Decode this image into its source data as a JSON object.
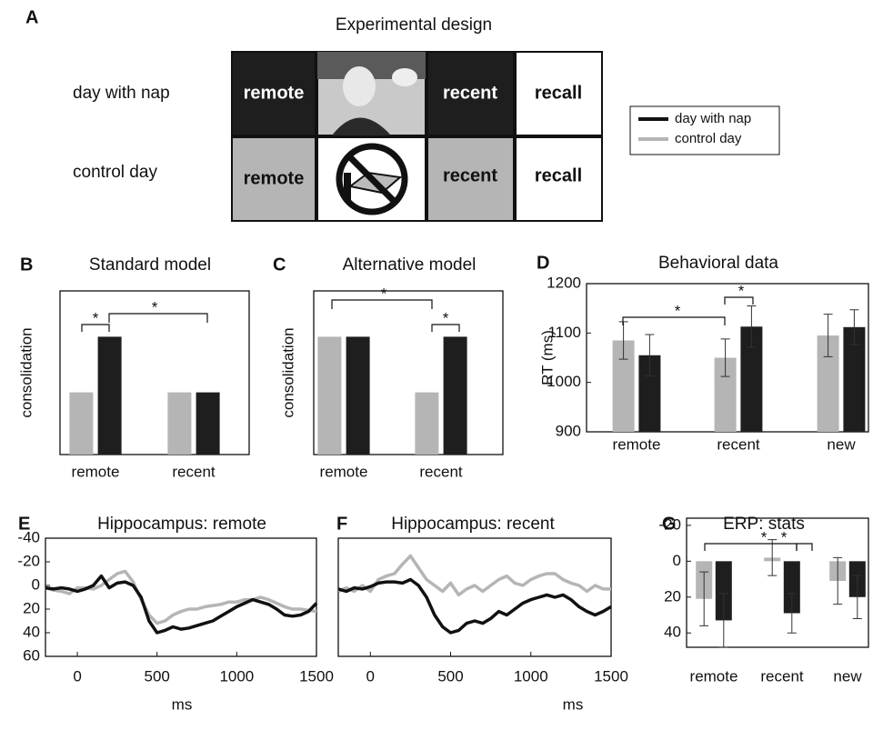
{
  "design": {
    "label": "A",
    "title": "Experimental design",
    "rows": [
      {
        "name": "day with nap",
        "cells": [
          "remote",
          "recent",
          "recall"
        ]
      },
      {
        "name": "control day",
        "cells": [
          "remote",
          "recent",
          "recall"
        ]
      }
    ],
    "legend": [
      {
        "name": "day with nap",
        "color": "#111111"
      },
      {
        "name": "control day",
        "color": "#b5b5b5"
      }
    ]
  },
  "chart_data": [
    {
      "type": "bar",
      "label": "B",
      "title": "Standard model",
      "ylabel": "consolidation",
      "categories": [
        "remote",
        "recent"
      ],
      "ylim": [
        0,
        1
      ],
      "series": [
        {
          "color": "#b5b5b5",
          "values": [
            0.38,
            0.38
          ]
        },
        {
          "color": "#1e1e1e",
          "values": [
            0.72,
            0.38
          ]
        }
      ],
      "annotations": [
        "*",
        "*"
      ]
    },
    {
      "type": "bar",
      "label": "C",
      "title": "Alternative model",
      "ylabel": "consolidation",
      "categories": [
        "remote",
        "recent"
      ],
      "ylim": [
        0,
        1
      ],
      "series": [
        {
          "color": "#b5b5b5",
          "values": [
            0.72,
            0.38
          ]
        },
        {
          "color": "#1e1e1e",
          "values": [
            0.72,
            0.72
          ]
        }
      ],
      "annotations": [
        "*",
        "*"
      ]
    },
    {
      "type": "bar",
      "label": "D",
      "title": "Behavioral data",
      "ylabel": "RT (ms)",
      "categories": [
        "remote",
        "recent",
        "new"
      ],
      "ylim": [
        900,
        1200
      ],
      "yticks": [
        900,
        1000,
        1100,
        1200
      ],
      "series": [
        {
          "color": "#b5b5b5",
          "values": [
            1085,
            1050,
            1095
          ],
          "errors": [
            38,
            38,
            43
          ]
        },
        {
          "color": "#1e1e1e",
          "values": [
            1055,
            1113,
            1112
          ],
          "errors": [
            42,
            42,
            35
          ]
        }
      ],
      "annotations": [
        "*",
        "*"
      ]
    },
    {
      "type": "line",
      "label": "E",
      "title": "Hippocampus: remote",
      "xlabel": "ms",
      "y_inverted": true,
      "xlim": [
        -200,
        1500
      ],
      "xticks": [
        0,
        500,
        1000,
        1500
      ],
      "ylim": [
        -40,
        60
      ],
      "yticks": [
        -40,
        -20,
        0,
        20,
        40,
        60
      ],
      "x": [
        -200,
        -150,
        -100,
        -50,
        0,
        50,
        100,
        150,
        200,
        250,
        300,
        350,
        400,
        450,
        500,
        550,
        600,
        650,
        700,
        750,
        800,
        850,
        900,
        950,
        1000,
        1050,
        1100,
        1150,
        1200,
        1250,
        1300,
        1350,
        1400,
        1450,
        1500
      ],
      "series": [
        {
          "color": "#b5b5b5",
          "values": [
            2,
            4,
            5,
            7,
            2,
            2,
            3,
            0,
            -5,
            -10,
            -12,
            -3,
            12,
            25,
            32,
            30,
            25,
            22,
            20,
            20,
            18,
            17,
            16,
            14,
            14,
            12,
            12,
            10,
            12,
            15,
            18,
            20,
            20,
            21,
            22
          ]
        },
        {
          "color": "#111111",
          "values": [
            2,
            3,
            2,
            3,
            5,
            3,
            0,
            -8,
            2,
            -2,
            -3,
            0,
            10,
            30,
            40,
            38,
            35,
            37,
            36,
            34,
            32,
            30,
            26,
            22,
            18,
            15,
            12,
            14,
            16,
            20,
            25,
            26,
            25,
            22,
            15
          ]
        }
      ]
    },
    {
      "type": "line",
      "label": "F",
      "title": "Hippocampus: recent",
      "xlabel": "ms",
      "y_inverted": true,
      "xlim": [
        -200,
        1500
      ],
      "xticks": [
        0,
        500,
        1000,
        1500
      ],
      "ylim": [
        -40,
        60
      ],
      "x": [
        -200,
        -150,
        -100,
        -50,
        0,
        50,
        100,
        150,
        200,
        250,
        300,
        350,
        400,
        450,
        500,
        550,
        600,
        650,
        700,
        750,
        800,
        850,
        900,
        950,
        1000,
        1050,
        1100,
        1150,
        1200,
        1250,
        1300,
        1350,
        1400,
        1450,
        1500
      ],
      "series": [
        {
          "color": "#b5b5b5",
          "values": [
            5,
            2,
            5,
            0,
            5,
            -5,
            -8,
            -10,
            -18,
            -25,
            -15,
            -5,
            0,
            5,
            -2,
            8,
            3,
            0,
            5,
            0,
            -5,
            -8,
            -2,
            0,
            -5,
            -8,
            -10,
            -10,
            -5,
            -2,
            0,
            5,
            0,
            3,
            3
          ]
        },
        {
          "color": "#111111",
          "values": [
            3,
            5,
            2,
            3,
            1,
            -2,
            -3,
            -3,
            -2,
            -5,
            0,
            10,
            25,
            35,
            40,
            38,
            32,
            30,
            32,
            28,
            22,
            25,
            20,
            15,
            12,
            10,
            8,
            10,
            8,
            12,
            18,
            22,
            25,
            22,
            18
          ]
        }
      ]
    },
    {
      "type": "bar",
      "label": "G",
      "title": "ERP: stats",
      "y_inverted": true,
      "categories": [
        "remote",
        "recent",
        "new"
      ],
      "ylim": [
        -24,
        48
      ],
      "yticks": [
        -20,
        0,
        20,
        40
      ],
      "series": [
        {
          "color": "#b5b5b5",
          "values": [
            21,
            -2,
            11
          ],
          "errors": [
            15,
            10,
            13
          ]
        },
        {
          "color": "#1e1e1e",
          "values": [
            33,
            29,
            20
          ],
          "errors": [
            15,
            11,
            12
          ]
        }
      ],
      "annotations": [
        "*",
        "*"
      ]
    }
  ]
}
